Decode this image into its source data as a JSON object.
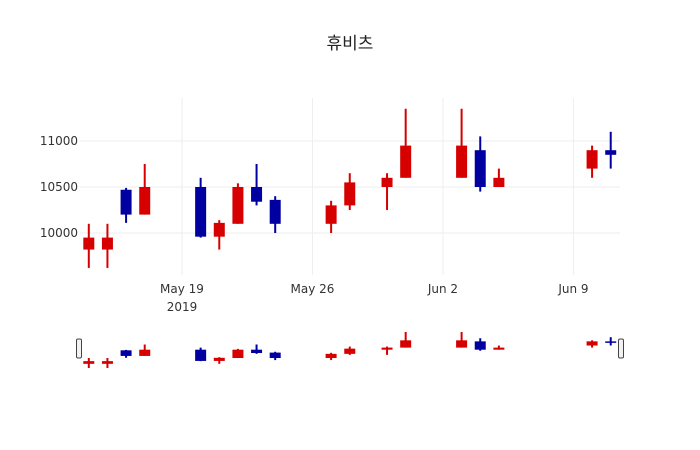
{
  "chart_data": {
    "type": "candlestick",
    "title": "휴비츠",
    "xlabel": "",
    "ylabel": "",
    "ylim": [
      9560,
      11480
    ],
    "y_ticks": [
      10000,
      10500,
      11000
    ],
    "x_ticks": [
      {
        "date": "2019-05-19",
        "label": "May 19",
        "sublabel": "2019"
      },
      {
        "date": "2019-05-26",
        "label": "May 26",
        "sublabel": ""
      },
      {
        "date": "2019-06-02",
        "label": "Jun 2",
        "sublabel": ""
      },
      {
        "date": "2019-06-09",
        "label": "Jun 9",
        "sublabel": ""
      }
    ],
    "xrange": [
      "2019-05-13.5",
      "2019-06-11.5"
    ],
    "grid": true,
    "rangeslider": true,
    "colors": {
      "increasing": "#d60000",
      "decreasing": "#0000a0"
    },
    "candles": [
      {
        "date": "2019-05-14",
        "open": 9820,
        "high": 10100,
        "low": 9620,
        "close": 9950
      },
      {
        "date": "2019-05-15",
        "open": 9820,
        "high": 10100,
        "low": 9620,
        "close": 9950
      },
      {
        "date": "2019-05-16",
        "open": 10470,
        "high": 10490,
        "low": 10110,
        "close": 10200
      },
      {
        "date": "2019-05-17",
        "open": 10200,
        "high": 10750,
        "low": 10200,
        "close": 10500
      },
      {
        "date": "2019-05-20",
        "open": 10500,
        "high": 10600,
        "low": 9950,
        "close": 9960
      },
      {
        "date": "2019-05-21",
        "open": 9960,
        "high": 10140,
        "low": 9820,
        "close": 10110
      },
      {
        "date": "2019-05-22",
        "open": 10100,
        "high": 10540,
        "low": 10100,
        "close": 10500
      },
      {
        "date": "2019-05-23",
        "open": 10500,
        "high": 10750,
        "low": 10300,
        "close": 10340
      },
      {
        "date": "2019-05-24",
        "open": 10360,
        "high": 10400,
        "low": 10000,
        "close": 10100
      },
      {
        "date": "2019-05-27",
        "open": 10100,
        "high": 10350,
        "low": 10000,
        "close": 10300
      },
      {
        "date": "2019-05-28",
        "open": 10300,
        "high": 10650,
        "low": 10250,
        "close": 10550
      },
      {
        "date": "2019-05-30",
        "open": 10500,
        "high": 10650,
        "low": 10250,
        "close": 10600
      },
      {
        "date": "2019-05-31",
        "open": 10600,
        "high": 11350,
        "low": 10600,
        "close": 10950
      },
      {
        "date": "2019-06-03",
        "open": 10600,
        "high": 11350,
        "low": 10600,
        "close": 10950
      },
      {
        "date": "2019-06-04",
        "open": 10900,
        "high": 11050,
        "low": 10450,
        "close": 10500
      },
      {
        "date": "2019-06-05",
        "open": 10500,
        "high": 10700,
        "low": 10500,
        "close": 10600
      },
      {
        "date": "2019-06-10",
        "open": 10700,
        "high": 10950,
        "low": 10600,
        "close": 10900
      },
      {
        "date": "2019-06-11",
        "open": 10900,
        "high": 11100,
        "low": 10700,
        "close": 10850
      }
    ]
  }
}
